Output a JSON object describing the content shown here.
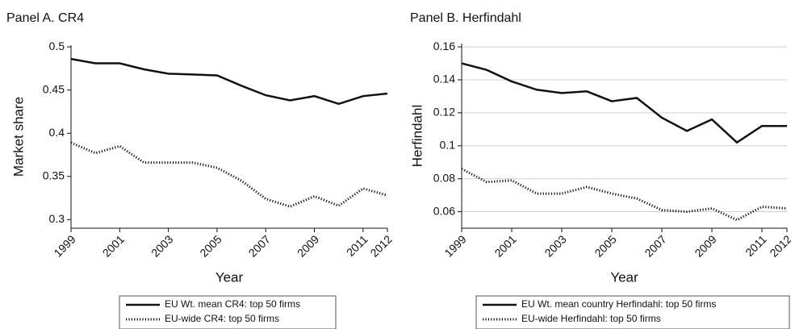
{
  "chart_data": [
    {
      "type": "line",
      "title": "Panel A. CR4",
      "ylabel": "Market share",
      "xlabel": "Year",
      "x": [
        1999,
        2000,
        2001,
        2002,
        2003,
        2004,
        2005,
        2006,
        2007,
        2008,
        2009,
        2010,
        2011,
        2012
      ],
      "xlim": [
        1999,
        2012
      ],
      "xticks": [
        1999,
        2001,
        2003,
        2005,
        2007,
        2009,
        2011,
        2012
      ],
      "ylim": [
        0.29,
        0.502
      ],
      "yticks": [
        0.3,
        0.35,
        0.4,
        0.45,
        0.5
      ],
      "grid": false,
      "legend": "bottom",
      "series": [
        {
          "name": "EU Wt. mean CR4: top 50 firms",
          "color": "#111111",
          "style": "solid",
          "values": [
            0.486,
            0.481,
            0.481,
            0.474,
            0.469,
            0.468,
            0.467,
            0.455,
            0.444,
            0.438,
            0.443,
            0.434,
            0.443,
            0.446
          ]
        },
        {
          "name": "EU-wide CR4: top 50 firms",
          "color": "#111111",
          "style": "dotted",
          "values": [
            0.389,
            0.377,
            0.385,
            0.366,
            0.366,
            0.366,
            0.36,
            0.345,
            0.324,
            0.315,
            0.327,
            0.316,
            0.336,
            0.328
          ]
        }
      ]
    },
    {
      "type": "line",
      "title": "Panel B. Herfindahl",
      "ylabel": "Herfindahl",
      "xlabel": "Year",
      "x": [
        1999,
        2000,
        2001,
        2002,
        2003,
        2004,
        2005,
        2006,
        2007,
        2008,
        2009,
        2010,
        2011,
        2012
      ],
      "xlim": [
        1999,
        2012
      ],
      "xticks": [
        1999,
        2001,
        2003,
        2005,
        2007,
        2009,
        2011,
        2012
      ],
      "ylim": [
        0.05,
        0.162
      ],
      "yticks": [
        0.06,
        0.08,
        0.1,
        0.12,
        0.14,
        0.16
      ],
      "grid": true,
      "legend": "bottom",
      "series": [
        {
          "name": "EU Wt. mean country Herfindahl: top 50 firms",
          "color": "#111111",
          "style": "solid",
          "values": [
            0.15,
            0.146,
            0.139,
            0.134,
            0.132,
            0.133,
            0.127,
            0.129,
            0.117,
            0.109,
            0.116,
            0.102,
            0.112,
            0.112
          ]
        },
        {
          "name": "EU-wide Herfindahl: top 50 firms",
          "color": "#111111",
          "style": "dotted",
          "values": [
            0.086,
            0.078,
            0.079,
            0.071,
            0.071,
            0.075,
            0.071,
            0.068,
            0.061,
            0.06,
            0.062,
            0.055,
            0.063,
            0.062
          ]
        }
      ]
    }
  ]
}
